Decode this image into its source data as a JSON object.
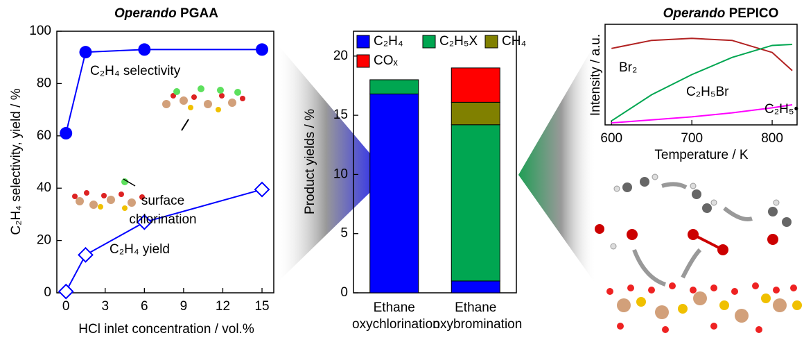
{
  "chart_data": [
    {
      "type": "line",
      "title": "Operando PGAA",
      "x_label": "HCl inlet concentration / vol.%",
      "y_label": "C₂H₄ selectivity, yield / %",
      "xlim": [
        -0.7,
        15.9
      ],
      "xticks": [
        0,
        3,
        6,
        9,
        12,
        15
      ],
      "ylim": [
        0,
        100
      ],
      "yticks": [
        0,
        20,
        40,
        60,
        80,
        100
      ],
      "series": [
        {
          "name": "C₂H₄ selectivity",
          "color": "#0000ff",
          "marker": "circle",
          "x": [
            0,
            1.5,
            6,
            15
          ],
          "values": [
            61,
            92,
            93,
            93
          ]
        },
        {
          "name": "C₂H₄ yield",
          "color": "#0000ff",
          "marker": "diamond",
          "x": [
            0,
            1.5,
            6,
            15
          ],
          "values": [
            0.5,
            14.5,
            27,
            39.5
          ]
        }
      ],
      "annotations": [
        "surface",
        "chlorination"
      ]
    },
    {
      "type": "stacked_bar",
      "y_label": "Product yields / %",
      "categories": [
        "Ethane oxychlorination",
        "Ethane oxybromination"
      ],
      "ylim": [
        0,
        22.1
      ],
      "yticks": [
        0,
        5,
        10,
        15,
        20
      ],
      "series": [
        {
          "name": "C₂H₄",
          "color": "#0000ff",
          "values": [
            16.8,
            1.0
          ]
        },
        {
          "name": "C₂H₅X",
          "color": "#00a651",
          "values": [
            1.2,
            13.2
          ]
        },
        {
          "name": "CH₄",
          "color": "#808000",
          "values": [
            0,
            1.9
          ]
        },
        {
          "name": "COₓ",
          "color": "#ff0000",
          "values": [
            0,
            2.9
          ]
        }
      ]
    },
    {
      "type": "line",
      "title": "Operando PEPICO",
      "x_label": "Temperature / K",
      "y_label": "Intensity / a.u.",
      "xlim": [
        592,
        831
      ],
      "xticks": [
        600,
        700,
        800
      ],
      "ylim": [
        0,
        1
      ],
      "series": [
        {
          "name": "Br₂",
          "color": "#b22222",
          "x": [
            600,
            650,
            700,
            750,
            800,
            825
          ],
          "values": [
            0.76,
            0.84,
            0.86,
            0.84,
            0.72,
            0.54
          ]
        },
        {
          "name": "C₂H₅Br",
          "color": "#00a651",
          "x": [
            600,
            650,
            700,
            750,
            800,
            825
          ],
          "values": [
            0.04,
            0.3,
            0.5,
            0.67,
            0.79,
            0.8
          ]
        },
        {
          "name": "C₂H₅•",
          "color": "#ff00ff",
          "x": [
            600,
            650,
            700,
            750,
            800,
            825
          ],
          "values": [
            0.02,
            0.05,
            0.08,
            0.12,
            0.17,
            0.2
          ]
        }
      ]
    }
  ]
}
